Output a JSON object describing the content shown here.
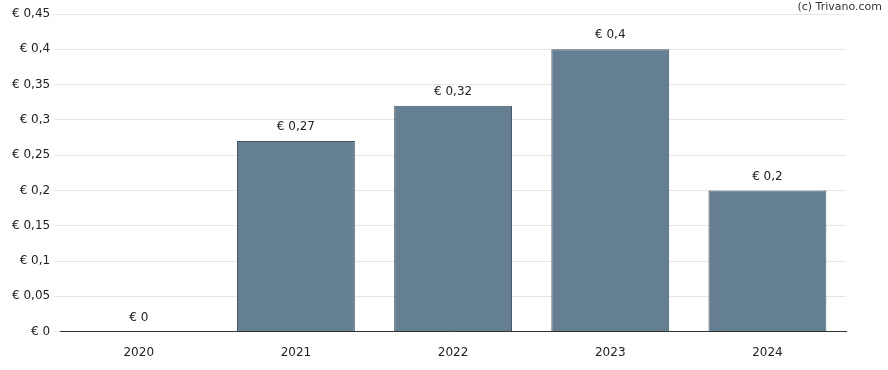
{
  "chart_data": {
    "type": "bar",
    "annotations": [
      "(c) Trivano.com"
    ],
    "categories": [
      "2020",
      "2021",
      "2022",
      "2023",
      "2024"
    ],
    "values": [
      0,
      0.27,
      0.32,
      0.4,
      0.2
    ],
    "value_labels": [
      "€ 0",
      "€ 0,27",
      "€ 0,32",
      "€ 0,4",
      "€ 0,2"
    ],
    "data_labels": true,
    "color": "#647f91",
    "ylim": [
      0,
      0.45
    ],
    "yticks": [
      {
        "value": 0,
        "label": "€ 0"
      },
      {
        "value": 0.05,
        "label": "€ 0,05"
      },
      {
        "value": 0.1,
        "label": "€ 0,1"
      },
      {
        "value": 0.15,
        "label": "€ 0,15"
      },
      {
        "value": 0.2,
        "label": "€ 0,2"
      },
      {
        "value": 0.25,
        "label": "€ 0,25"
      },
      {
        "value": 0.3,
        "label": "€ 0,3"
      },
      {
        "value": 0.35,
        "label": "€ 0,35"
      },
      {
        "value": 0.4,
        "label": "€ 0,4"
      },
      {
        "value": 0.45,
        "label": "€ 0,45"
      }
    ],
    "grid": true
  }
}
